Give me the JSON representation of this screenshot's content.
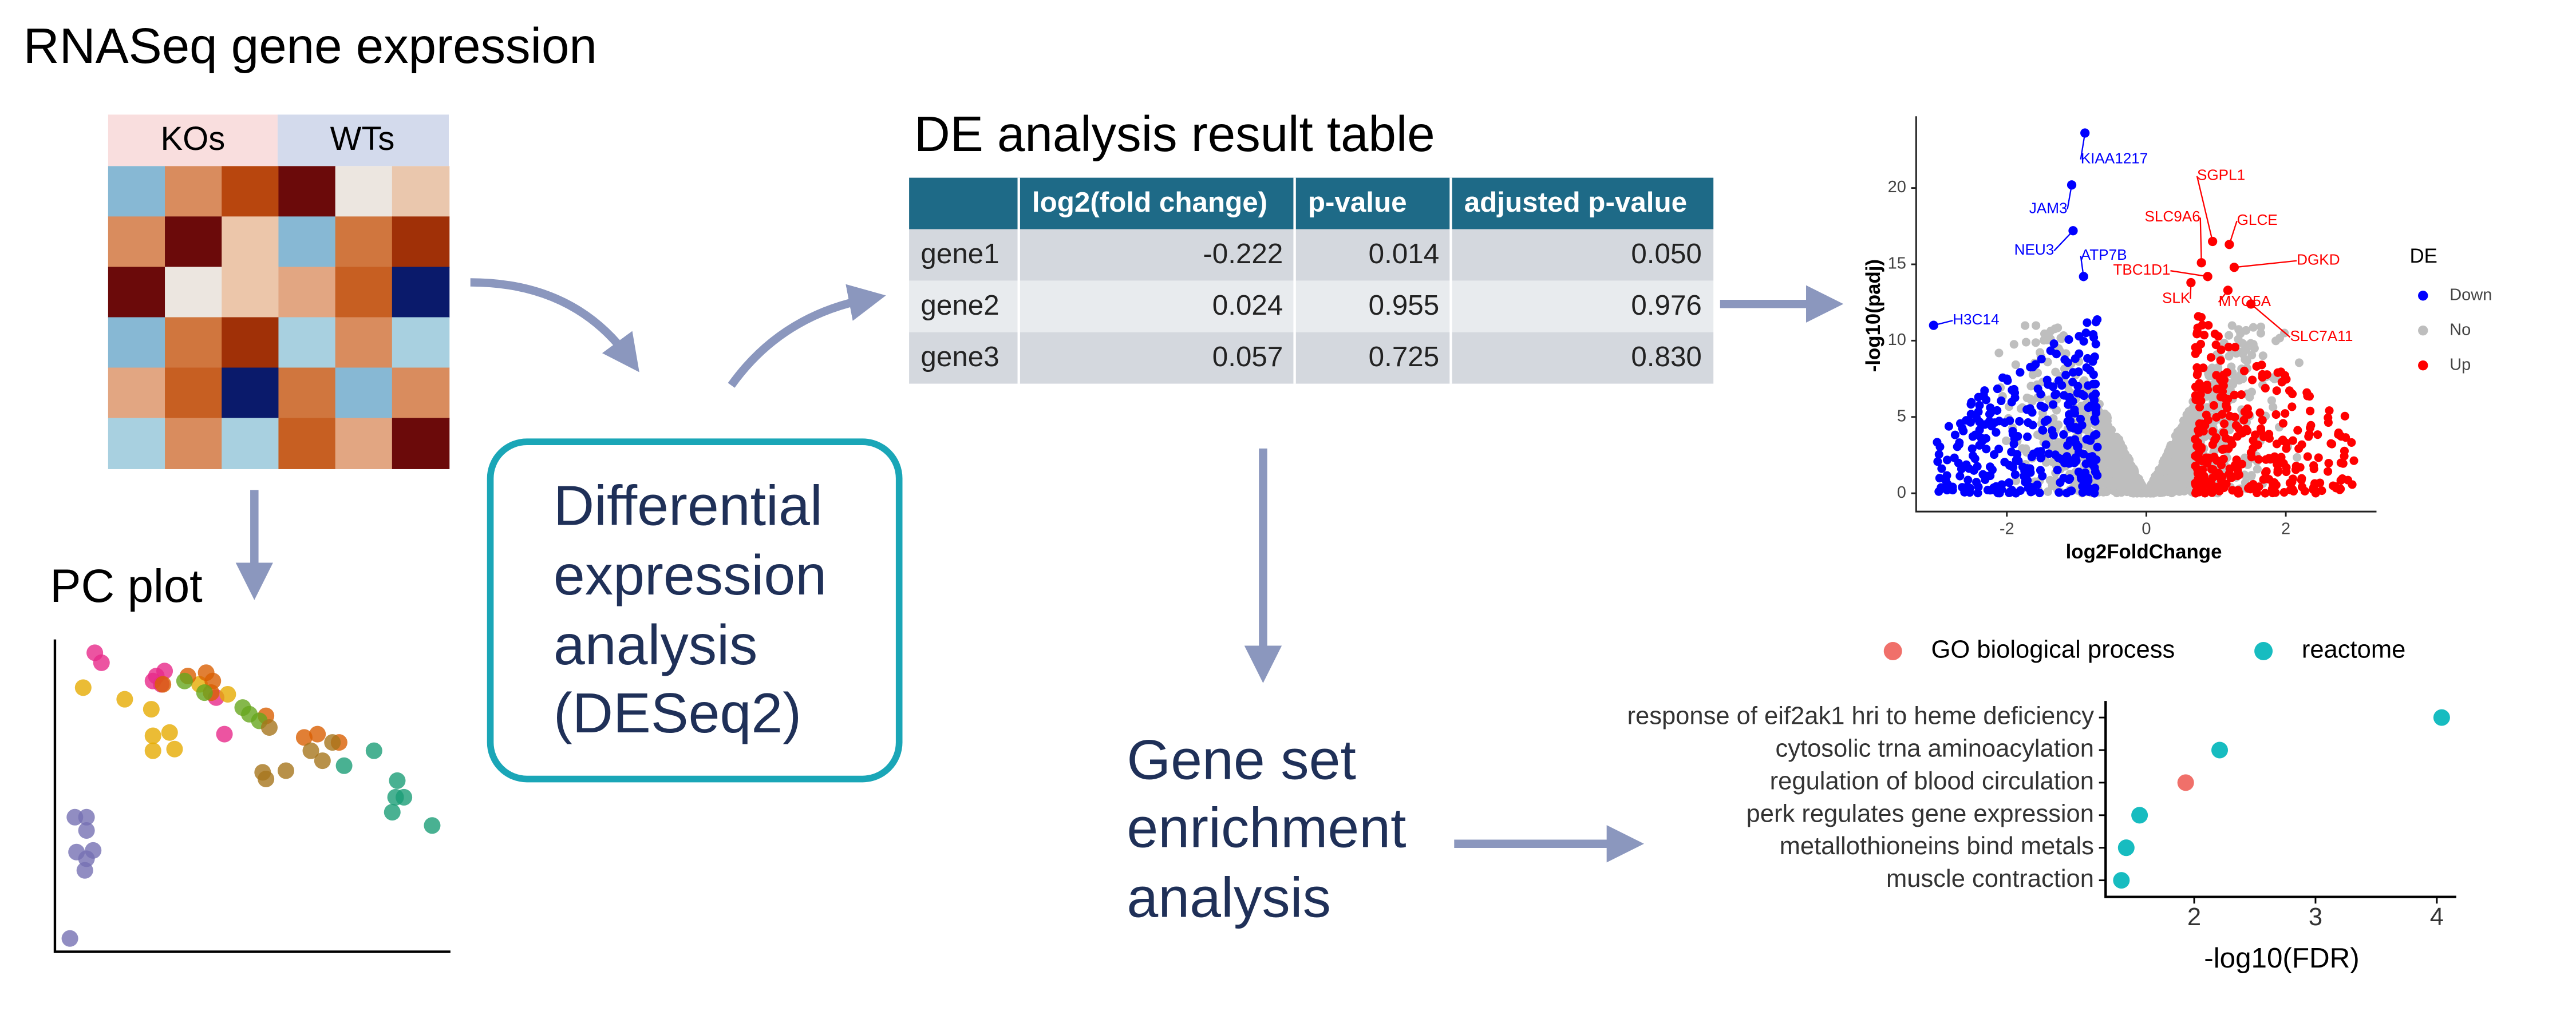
{
  "title": "RNASeq gene expression",
  "heatmap": {
    "groups": [
      "KOs",
      "WTs"
    ]
  },
  "pc_plot": {
    "title": "PC plot"
  },
  "process_box": {
    "lines": [
      "Differential",
      "expression",
      "analysis",
      "(DESeq2)"
    ]
  },
  "table": {
    "title": "DE analysis result table",
    "columns": [
      "log2(fold change)",
      "p-value",
      "adjusted p-value"
    ],
    "rows": [
      [
        "gene1",
        "-0.222",
        "0.014",
        "0.050"
      ],
      [
        "gene2",
        "0.024",
        "0.955",
        "0.976"
      ],
      [
        "gene3",
        "0.057",
        "0.725",
        "0.830"
      ]
    ]
  },
  "enrichment_box": {
    "lines": [
      "Gene set",
      "enrichment",
      "analysis"
    ]
  },
  "volcano_plot": {
    "type": "scatter",
    "x_label": "log2FoldChange",
    "y_label": "-log10(padj)",
    "legend_title": "DE",
    "xlim": [
      -3.3,
      3.3
    ],
    "ylim": [
      -1.2,
      24.7
    ],
    "xticks": [
      -2,
      0,
      2
    ],
    "yticks": [
      0,
      5,
      10,
      15,
      20
    ],
    "series": [
      {
        "name": "Down",
        "color": "#0000ff",
        "labels": [
          "KIAA1217",
          "JAM3",
          "NEU3",
          "ATP7B",
          "H3C14"
        ],
        "x": [
          -0.88,
          -1.07,
          -1.05,
          -0.9,
          -3.05
        ],
        "y": [
          23.6,
          20.2,
          17.2,
          14.2,
          11.0
        ]
      },
      {
        "name": "No",
        "color": "#bebebe",
        "labels": [],
        "x": [],
        "y": []
      },
      {
        "name": "Up",
        "color": "#ff0000",
        "labels": [
          "SGPL1",
          "SLC9A6",
          "GLCE",
          "DGKD",
          "TBC1D1",
          "SLK",
          "MYO5A",
          "SLC7A11"
        ],
        "x": [
          0.95,
          0.79,
          1.19,
          1.26,
          0.88,
          0.64,
          1.17,
          1.5
        ],
        "y": [
          16.5,
          15.1,
          16.3,
          14.8,
          14.2,
          13.8,
          13.3,
          12.4
        ]
      }
    ]
  },
  "enrichment_plot": {
    "type": "dot",
    "x_label": "-log10(FDR)",
    "xlim": [
      1.27,
      4.16
    ],
    "xticks": [
      2,
      3,
      4
    ],
    "categories": [
      "response of eif2ak1 hri to heme deficiency",
      "cytosolic trna aminoacylation",
      "regulation of blood circulation",
      "perk regulates gene expression",
      "metallothioneins bind metals",
      "muscle contraction"
    ],
    "series": [
      {
        "name": "GO biological process",
        "color": "#f0706a",
        "values": [
          null,
          null,
          1.93,
          null,
          null,
          null
        ]
      },
      {
        "name": "reactome",
        "color": "#17bcc0",
        "values": [
          4.04,
          2.21,
          null,
          1.55,
          1.44,
          1.4
        ]
      }
    ]
  }
}
